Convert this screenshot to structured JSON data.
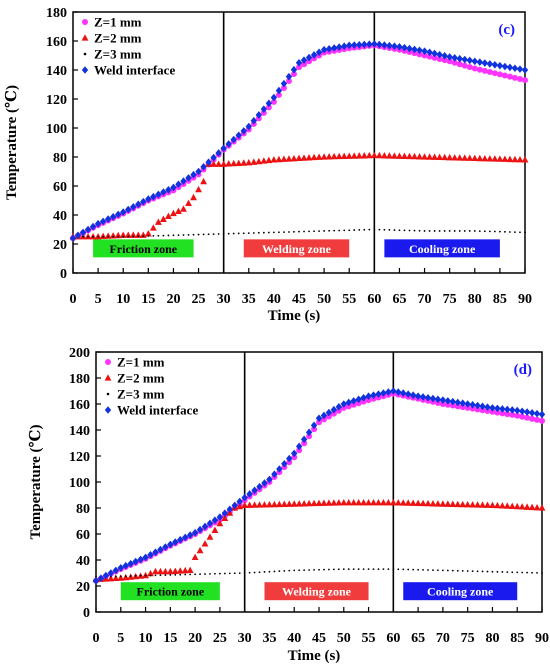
{
  "chart_data": [
    {
      "type": "scatter",
      "tag": "(c)",
      "xlabel": "Time (s)",
      "ylabel": "Temperature (℃)",
      "xlim": [
        0,
        90
      ],
      "ylim": [
        0,
        180
      ],
      "xticks": [
        0,
        5,
        10,
        15,
        20,
        25,
        30,
        35,
        40,
        45,
        50,
        55,
        60,
        65,
        70,
        75,
        80,
        85,
        90
      ],
      "yticks": [
        0,
        20,
        40,
        60,
        80,
        100,
        120,
        140,
        160,
        180
      ],
      "dividers": [
        30,
        60
      ],
      "zones": [
        {
          "label": "Friction zone",
          "x": [
            4,
            24
          ],
          "color": "#22e022",
          "text_color": "#000000"
        },
        {
          "label": "Welding zone",
          "x": [
            34,
            55
          ],
          "color": "#f03c3c",
          "text_color": "#ffffff"
        },
        {
          "label": "Cooling zone",
          "x": [
            62,
            85
          ],
          "color": "#1a1aee",
          "text_color": "#ffffff"
        }
      ],
      "zone_y": 17,
      "legend": [
        "Z=1 mm",
        "Z=2 mm",
        "Z=3 mm",
        "Weld interface"
      ],
      "series": [
        {
          "name": "Z=1 mm",
          "marker": "circle",
          "color": "#ff33ff",
          "knots": [
            [
              0,
              24
            ],
            [
              5,
              33
            ],
            [
              10,
              41
            ],
            [
              15,
              50
            ],
            [
              20,
              57
            ],
            [
              25,
              68
            ],
            [
              30,
              85
            ],
            [
              35,
              99
            ],
            [
              40,
              118
            ],
            [
              45,
              142
            ],
            [
              50,
              152
            ],
            [
              55,
              155
            ],
            [
              60,
              157
            ],
            [
              65,
              154
            ],
            [
              70,
              150
            ],
            [
              75,
              146
            ],
            [
              80,
              141
            ],
            [
              85,
              137
            ],
            [
              90,
              133
            ]
          ]
        },
        {
          "name": "Z=2 mm",
          "marker": "triangle",
          "color": "#ee1111",
          "knots": [
            [
              0,
              25
            ],
            [
              5,
              25
            ],
            [
              10,
              26
            ],
            [
              14,
              26
            ],
            [
              15,
              27
            ],
            [
              17,
              35
            ],
            [
              20,
              41
            ],
            [
              22,
              44
            ],
            [
              24,
              52
            ],
            [
              26,
              63
            ],
            [
              27,
              75
            ],
            [
              30,
              75
            ],
            [
              35,
              76
            ],
            [
              40,
              78
            ],
            [
              50,
              80
            ],
            [
              60,
              81
            ],
            [
              70,
              80
            ],
            [
              80,
              79
            ],
            [
              90,
              78
            ]
          ]
        },
        {
          "name": "Z=3 mm",
          "marker": "dot",
          "color": "#000000",
          "knots": [
            [
              0,
              25
            ],
            [
              10,
              25
            ],
            [
              20,
              26
            ],
            [
              30,
              27
            ],
            [
              40,
              28
            ],
            [
              50,
              29
            ],
            [
              60,
              30
            ],
            [
              70,
              29
            ],
            [
              80,
              29
            ],
            [
              90,
              28
            ]
          ]
        },
        {
          "name": "Weld interface",
          "marker": "diamond",
          "color": "#1133dd",
          "knots": [
            [
              0,
              24
            ],
            [
              5,
              34
            ],
            [
              10,
              42
            ],
            [
              15,
              51
            ],
            [
              20,
              59
            ],
            [
              25,
              70
            ],
            [
              30,
              86
            ],
            [
              35,
              101
            ],
            [
              40,
              121
            ],
            [
              45,
              145
            ],
            [
              50,
              154
            ],
            [
              55,
              157
            ],
            [
              60,
              158
            ],
            [
              65,
              156
            ],
            [
              70,
              153
            ],
            [
              75,
              149
            ],
            [
              80,
              146
            ],
            [
              85,
              143
            ],
            [
              90,
              140
            ]
          ]
        }
      ]
    },
    {
      "type": "scatter",
      "tag": "(d)",
      "xlabel": "Time (s)",
      "ylabel": "Temperature (℃)",
      "xlim": [
        0,
        90
      ],
      "ylim": [
        0,
        200
      ],
      "xticks": [
        0,
        5,
        10,
        15,
        20,
        25,
        30,
        35,
        40,
        45,
        50,
        55,
        60,
        65,
        70,
        75,
        80,
        85,
        90
      ],
      "yticks": [
        0,
        20,
        40,
        60,
        80,
        100,
        120,
        140,
        160,
        180,
        200
      ],
      "dividers": [
        30,
        60
      ],
      "zones": [
        {
          "label": "Friction zone",
          "x": [
            5,
            25
          ],
          "color": "#22e022",
          "text_color": "#000000"
        },
        {
          "label": "Welding zone",
          "x": [
            34,
            55
          ],
          "color": "#f03c3c",
          "text_color": "#ffffff"
        },
        {
          "label": "Cooling zone",
          "x": [
            62,
            85
          ],
          "color": "#1a1aee",
          "text_color": "#ffffff"
        }
      ],
      "zone_y": 16,
      "legend": [
        "Z=1 mm",
        "Z=2 mm",
        "Z=3 mm",
        "Weld interface"
      ],
      "series": [
        {
          "name": "Z=1 mm",
          "marker": "circle",
          "color": "#ff33ff",
          "knots": [
            [
              0,
              24
            ],
            [
              5,
              33
            ],
            [
              10,
              41
            ],
            [
              15,
              51
            ],
            [
              20,
              60
            ],
            [
              25,
              71
            ],
            [
              30,
              86
            ],
            [
              35,
              100
            ],
            [
              40,
              119
            ],
            [
              45,
              146
            ],
            [
              50,
              157
            ],
            [
              55,
              163
            ],
            [
              60,
              168
            ],
            [
              65,
              164
            ],
            [
              70,
              160
            ],
            [
              75,
              157
            ],
            [
              80,
              154
            ],
            [
              85,
              151
            ],
            [
              90,
              147
            ]
          ]
        },
        {
          "name": "Z=2 mm",
          "marker": "triangle",
          "color": "#ee1111",
          "knots": [
            [
              0,
              25
            ],
            [
              5,
              26
            ],
            [
              10,
              28
            ],
            [
              12,
              31
            ],
            [
              15,
              31
            ],
            [
              19,
              32
            ],
            [
              20,
              42
            ],
            [
              25,
              68
            ],
            [
              28,
              80
            ],
            [
              30,
              82
            ],
            [
              40,
              83
            ],
            [
              50,
              84
            ],
            [
              60,
              84
            ],
            [
              70,
              83
            ],
            [
              80,
              82
            ],
            [
              90,
              80
            ]
          ]
        },
        {
          "name": "Z=3 mm",
          "marker": "dot",
          "color": "#000000",
          "knots": [
            [
              0,
              27
            ],
            [
              10,
              28
            ],
            [
              20,
              29
            ],
            [
              30,
              30
            ],
            [
              40,
              32
            ],
            [
              50,
              33
            ],
            [
              60,
              33
            ],
            [
              70,
              32
            ],
            [
              80,
              31
            ],
            [
              90,
              30
            ]
          ]
        },
        {
          "name": "Weld interface",
          "marker": "diamond",
          "color": "#1133dd",
          "knots": [
            [
              0,
              24
            ],
            [
              5,
              34
            ],
            [
              10,
              42
            ],
            [
              15,
              52
            ],
            [
              20,
              61
            ],
            [
              25,
              73
            ],
            [
              30,
              88
            ],
            [
              35,
              102
            ],
            [
              40,
              122
            ],
            [
              45,
              149
            ],
            [
              50,
              160
            ],
            [
              55,
              166
            ],
            [
              60,
              170
            ],
            [
              65,
              166
            ],
            [
              70,
              163
            ],
            [
              75,
              160
            ],
            [
              80,
              157
            ],
            [
              85,
              155
            ],
            [
              90,
              152
            ]
          ]
        }
      ]
    }
  ]
}
